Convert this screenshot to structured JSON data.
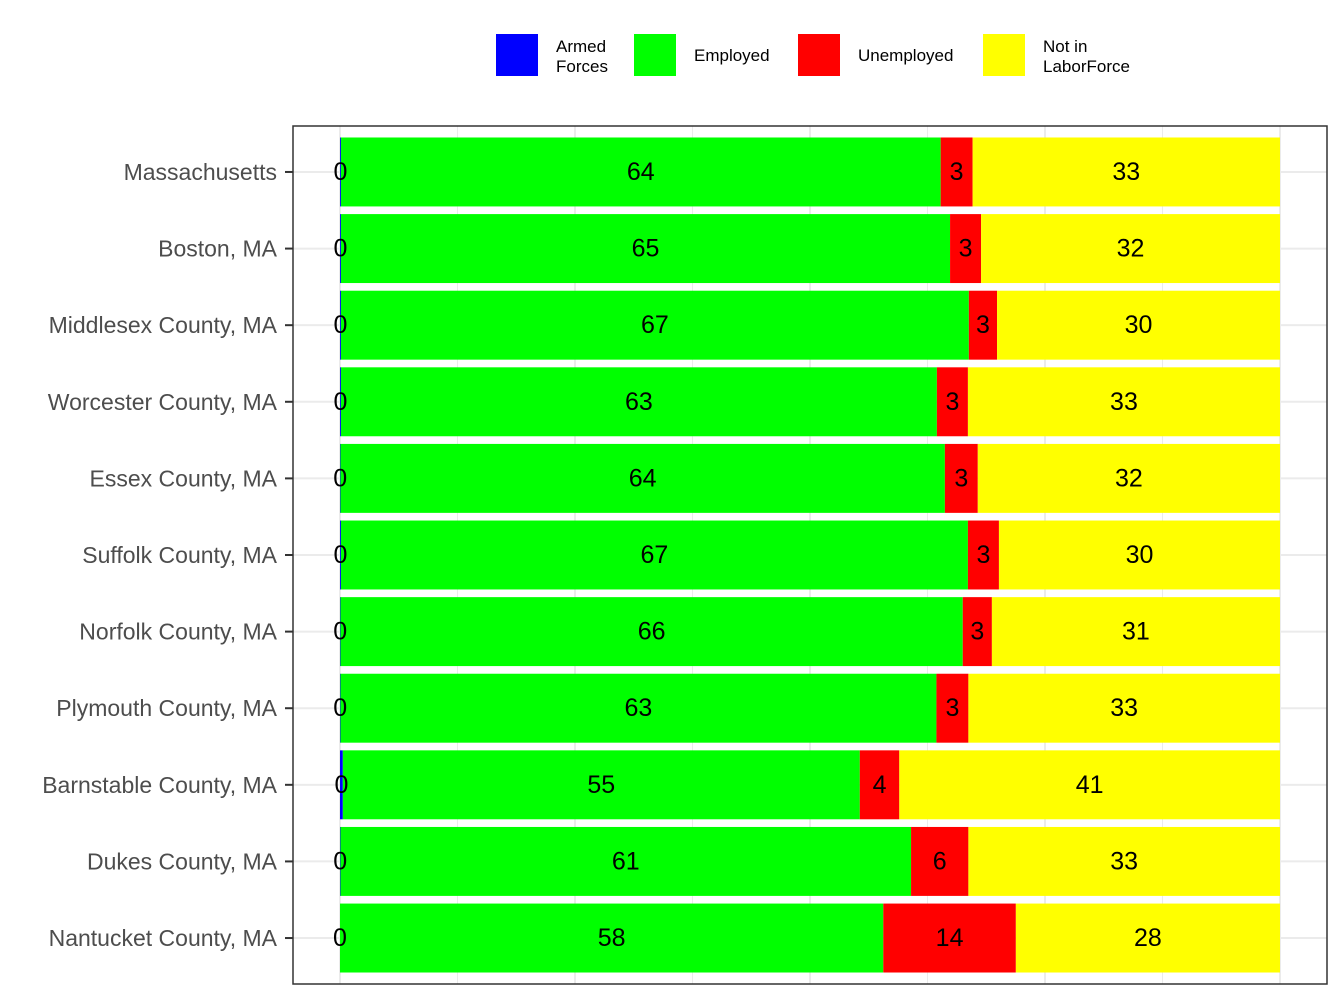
{
  "legend": {
    "items": [
      {
        "label": "Armed\nForces",
        "color": "#0000FF"
      },
      {
        "label": "Employed",
        "color": "#00FF00"
      },
      {
        "label": "Unemployed",
        "color": "#FF0000"
      },
      {
        "label": "Not in\nLaborForce",
        "color": "#FFFF00"
      }
    ]
  },
  "chart_data": {
    "type": "bar",
    "orientation": "horizontal",
    "stacked": true,
    "categories": [
      "Massachusetts",
      "Boston, MA",
      "Middlesex County, MA",
      "Worcester County, MA",
      "Essex County, MA",
      "Suffolk County, MA",
      "Norfolk County, MA",
      "Plymouth County, MA",
      "Barnstable County, MA",
      "Dukes County, MA",
      "Nantucket County, MA"
    ],
    "series": [
      {
        "name": "Armed Forces",
        "color": "#0000FF",
        "values": [
          0.1,
          0.1,
          0.1,
          0.1,
          0.05,
          0.1,
          0.05,
          0.05,
          0.3,
          0.05,
          0.0
        ],
        "labels": [
          "0",
          "0",
          "0",
          "0",
          "0",
          "0",
          "0",
          "0",
          "0",
          "0",
          "0"
        ]
      },
      {
        "name": "Employed",
        "color": "#00FF00",
        "values": [
          63.8,
          64.8,
          66.8,
          63.4,
          64.3,
          66.7,
          66.2,
          63.4,
          55.0,
          60.7,
          57.8
        ],
        "labels": [
          "64",
          "65",
          "67",
          "63",
          "64",
          "67",
          "66",
          "63",
          "55",
          "61",
          "58"
        ]
      },
      {
        "name": "Unemployed",
        "color": "#FF0000",
        "values": [
          3.4,
          3.3,
          3.0,
          3.3,
          3.5,
          3.3,
          3.1,
          3.4,
          4.2,
          6.1,
          14.1
        ],
        "labels": [
          "3",
          "3",
          "3",
          "3",
          "3",
          "3",
          "3",
          "3",
          "4",
          "6",
          "14"
        ]
      },
      {
        "name": "Not in LaborForce",
        "color": "#FFFF00",
        "values": [
          32.7,
          31.8,
          30.1,
          33.2,
          32.15,
          29.9,
          30.65,
          33.15,
          40.5,
          33.15,
          28.1
        ],
        "labels": [
          "33",
          "32",
          "30",
          "33",
          "32",
          "30",
          "31",
          "33",
          "41",
          "33",
          "28"
        ]
      }
    ],
    "xlim": [
      -5,
      105
    ],
    "x_ticks": [
      0,
      12.5,
      25,
      37.5,
      50,
      62.5,
      75,
      87.5,
      100
    ],
    "grid": true,
    "legend_position": "top"
  }
}
